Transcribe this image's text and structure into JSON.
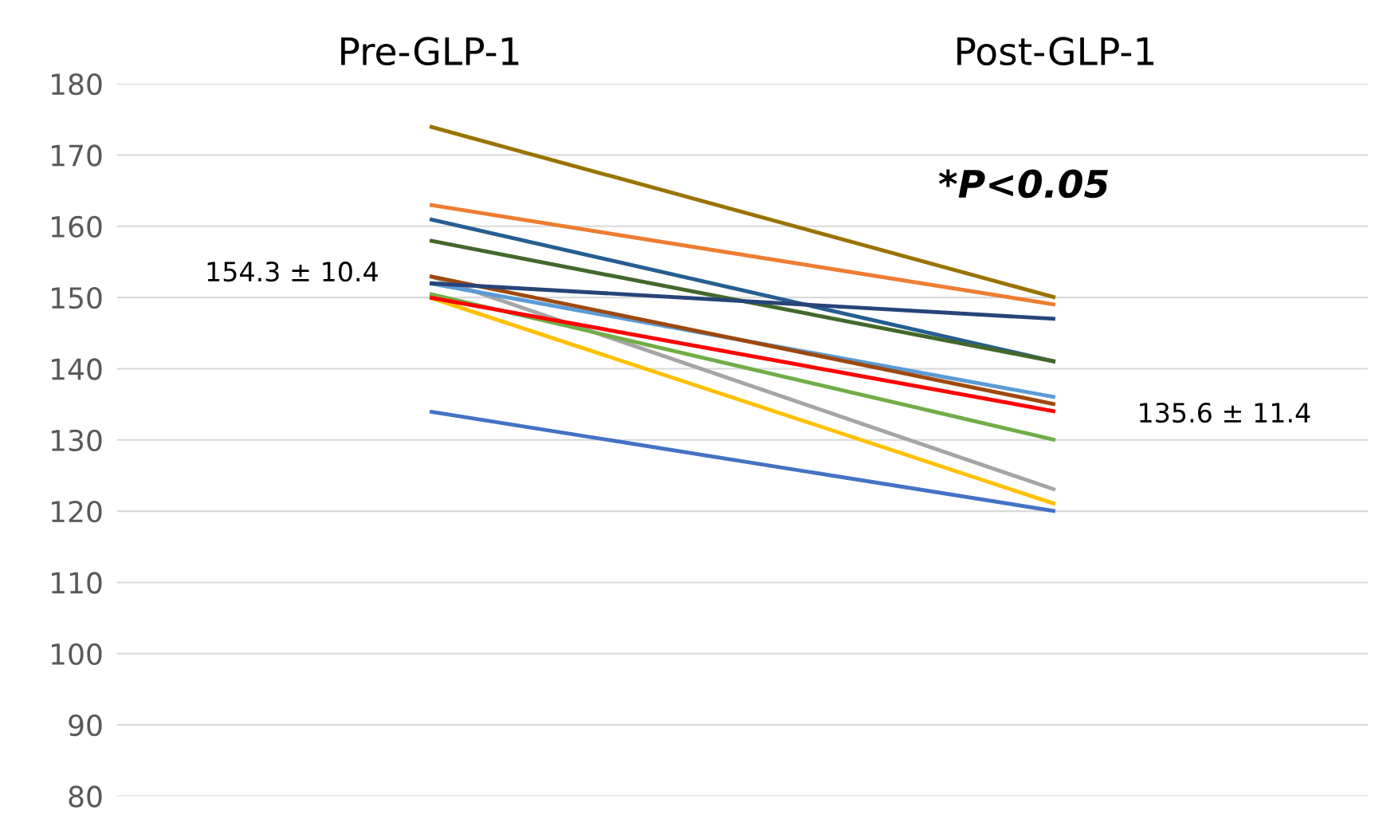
{
  "chart_data": {
    "type": "line",
    "categories": [
      "Pre-GLP-1",
      "Post-GLP-1"
    ],
    "series": [
      {
        "color": "#997300",
        "values": [
          174,
          150
        ]
      },
      {
        "color": "#ed7d31",
        "values": [
          163,
          149
        ]
      },
      {
        "color": "#255e91",
        "values": [
          161,
          141
        ]
      },
      {
        "color": "#43682b",
        "values": [
          158,
          141
        ]
      },
      {
        "color": "#a5a5a5",
        "values": [
          153,
          123
        ]
      },
      {
        "color": "#5b9bd5",
        "values": [
          152,
          136
        ]
      },
      {
        "color": "#9e480e",
        "values": [
          153,
          135
        ]
      },
      {
        "color": "#264478",
        "values": [
          152,
          147
        ]
      },
      {
        "color": "#70ad47",
        "values": [
          150.5,
          130
        ]
      },
      {
        "color": "#ffc000",
        "values": [
          150,
          121
        ]
      },
      {
        "color": "#ff0000",
        "values": [
          150,
          134
        ]
      },
      {
        "color": "#4472c4",
        "values": [
          134,
          120
        ]
      }
    ],
    "ylim": [
      80,
      180
    ],
    "yticks": [
      80,
      90,
      100,
      110,
      120,
      130,
      140,
      150,
      160,
      170,
      180
    ],
    "grid": "y",
    "legend": false,
    "marker": "none",
    "line_style": "solid",
    "annotations": [
      "154.3 ± 10.4",
      "135.6 ± 11.4",
      "*P<0.05"
    ]
  }
}
